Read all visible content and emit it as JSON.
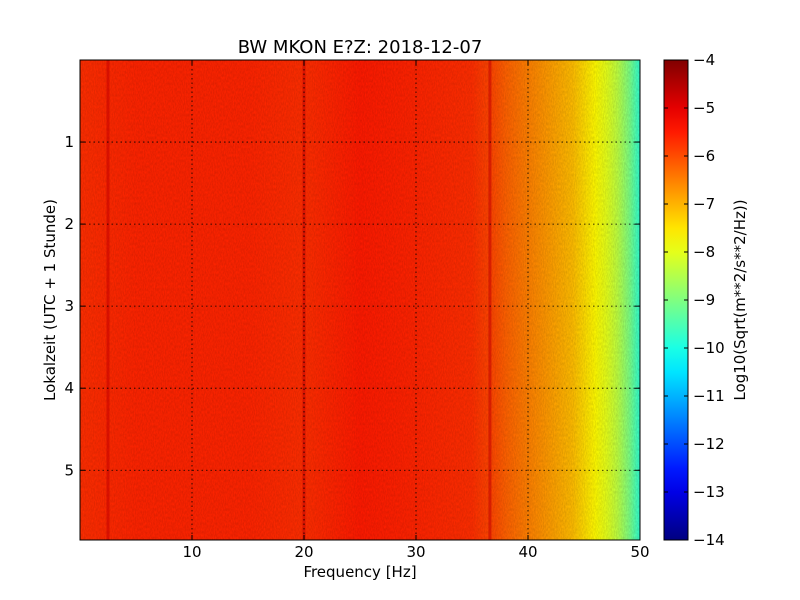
{
  "chart_data": {
    "type": "heatmap",
    "title": "BW MKON E?Z: 2018-12-07",
    "xlabel": "Frequency [Hz]",
    "ylabel": "Lokalzeit (UTC + 1 Stunde)",
    "colorbar_label": "Log10(Sqrt(m**2/s**2/Hz))",
    "xlim": [
      0,
      50
    ],
    "ylim": [
      5.85,
      0
    ],
    "x_ticks": [
      10,
      20,
      30,
      40,
      50
    ],
    "y_ticks": [
      1,
      2,
      3,
      4,
      5
    ],
    "color_range": [
      -14,
      -4
    ],
    "colorbar_ticks": [
      -4,
      -5,
      -6,
      -7,
      -8,
      -9,
      -10,
      -11,
      -12,
      -13,
      -14
    ],
    "colormap": "jet",
    "grid": true,
    "spectrum_profile": {
      "frequency_hz": [
        0,
        5,
        10,
        15,
        20,
        25,
        30,
        35,
        37,
        38,
        40,
        42,
        44,
        45,
        46,
        47,
        48,
        49,
        50
      ],
      "log10_asd": [
        -5.7,
        -5.6,
        -5.6,
        -5.6,
        -5.7,
        -5.5,
        -5.6,
        -5.7,
        -6.0,
        -6.2,
        -6.5,
        -6.8,
        -7.1,
        -7.4,
        -7.7,
        -8.0,
        -8.4,
        -9.0,
        -9.8
      ]
    },
    "notable_lines_hz": [
      2.5,
      20.0,
      36.6
    ]
  }
}
